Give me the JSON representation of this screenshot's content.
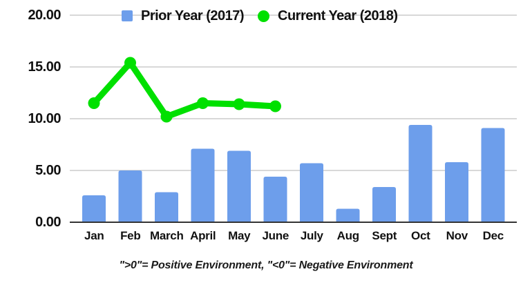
{
  "chart_data": {
    "type": "combo-bar-line",
    "title": "",
    "categories": [
      "Jan",
      "Feb",
      "March",
      "April",
      "May",
      "June",
      "July",
      "Aug",
      "Sept",
      "Oct",
      "Nov",
      "Dec"
    ],
    "series": [
      {
        "name": "Prior Year (2017)",
        "type": "bar",
        "color": "#6d9eeb",
        "marker": "square",
        "values": [
          2.6,
          5.0,
          2.9,
          7.1,
          6.9,
          4.4,
          5.7,
          1.3,
          3.4,
          9.4,
          5.8,
          9.1
        ]
      },
      {
        "name": "Current Year (2018)",
        "type": "line",
        "color": "#00e000",
        "marker": "circle",
        "values": [
          11.5,
          15.4,
          10.2,
          11.5,
          11.4,
          11.2,
          null,
          null,
          null,
          null,
          null,
          null
        ]
      }
    ],
    "ylim": [
      0,
      20
    ],
    "ytick_labels": [
      "20.00",
      "15.00",
      "10.00",
      "5.00",
      "0.00"
    ],
    "ytick_values": [
      20,
      15,
      10,
      5,
      0
    ],
    "grid": true,
    "grid_color": "#cccccc",
    "axis_color": "#333333",
    "text_color": "#111111",
    "legend_position": "top",
    "caption": "\">0\"= Positive Environment, \"<0\"= Negative Environment"
  }
}
